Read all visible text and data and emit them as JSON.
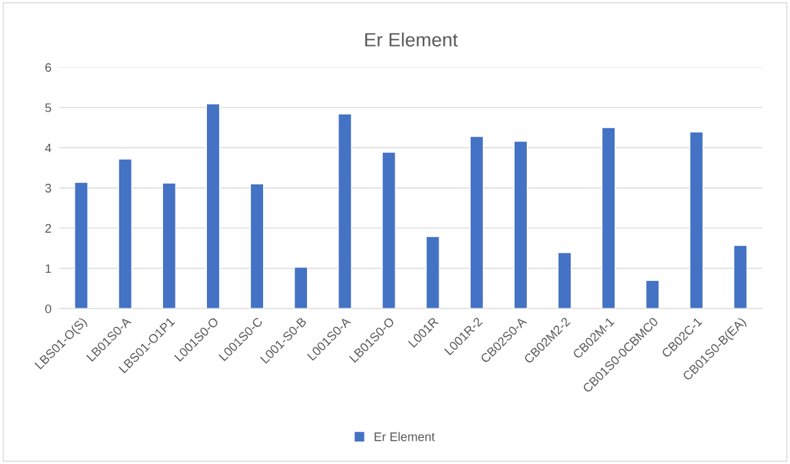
{
  "chart_data": {
    "type": "bar",
    "title": "Er Element",
    "categories": [
      "LBS01-O(S)",
      "LB01S0-A",
      "LBS01-O1P1",
      "L001S0-O",
      "L001S0-C",
      "L001-S0-B",
      "L001S0-A",
      "LB01S0-O",
      "L001R",
      "L001R-2",
      "CB02S0-A",
      "CB02M2-2",
      "CB02M-1",
      "CB01S0-0CBMC0",
      "CB02C-1",
      "CB01S0-B(EA)"
    ],
    "series": [
      {
        "name": "Er Element",
        "color": "#4472c4",
        "values": [
          3.14,
          3.72,
          3.12,
          5.09,
          3.1,
          1.03,
          4.84,
          3.89,
          1.79,
          4.28,
          4.16,
          1.39,
          4.5,
          0.7,
          4.39,
          1.57
        ]
      }
    ],
    "ylim": [
      0,
      6
    ],
    "yticks": [
      0,
      1,
      2,
      3,
      4,
      5,
      6
    ],
    "grid": "y",
    "legend": "bottom"
  }
}
